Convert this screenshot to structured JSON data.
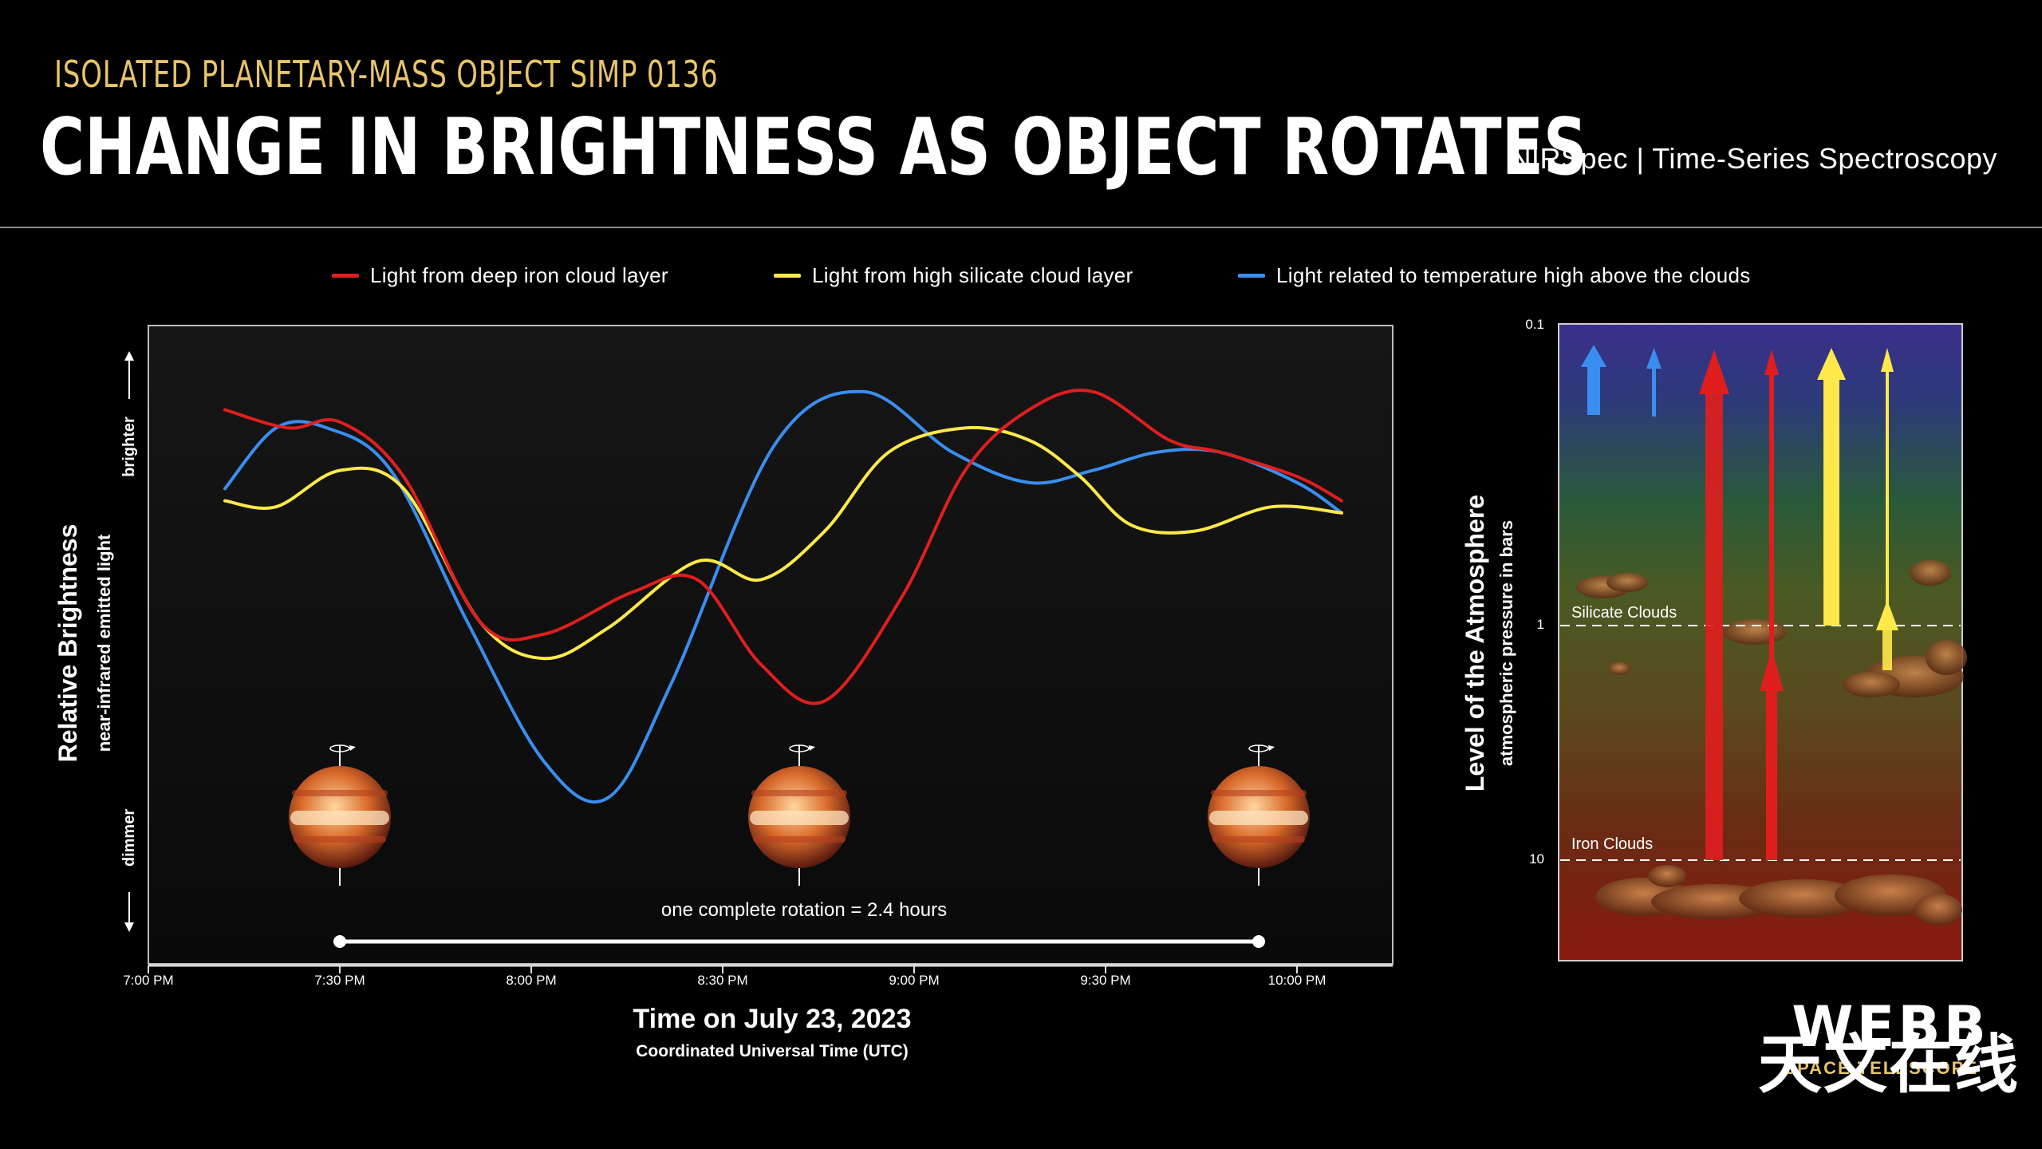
{
  "header": {
    "subtitle": "ISOLATED PLANETARY-MASS OBJECT SIMP 0136",
    "title": "CHANGE IN BRIGHTNESS AS OBJECT ROTATES",
    "instrument": "NIRSpec | Time-Series Spectroscopy"
  },
  "legend": [
    {
      "label": "Light from deep iron cloud layer",
      "color": "#e01e1e"
    },
    {
      "label": "Light from high silicate cloud layer",
      "color": "#ffe84a"
    },
    {
      "label": "Light related to temperature high above the clouds",
      "color": "#3a8ef0"
    }
  ],
  "colors": {
    "red": "#e01e1e",
    "yellow": "#ffe84a",
    "blue": "#3a8ef0"
  },
  "chart_data": [
    {
      "type": "line",
      "title": "Time on July 23, 2023",
      "subtitle": "Coordinated Universal Time (UTC)",
      "ylabel": "Relative Brightness",
      "ylabel_sub": "near-infrared emitted light",
      "y_top_label": "brighter",
      "y_bottom_label": "dimmer",
      "xlim_minutes": [
        0,
        195
      ],
      "ylim": [
        0,
        100
      ],
      "tick_labels": [
        "7:00 PM",
        "7:30 PM",
        "8:00 PM",
        "8:30 PM",
        "9:00 PM",
        "9:30 PM",
        "10:00 PM"
      ],
      "tick_minutes": [
        0,
        30,
        60,
        90,
        120,
        150,
        180
      ],
      "series": [
        {
          "name": "Light from deep iron cloud layer",
          "color": "#e01e1e",
          "x": [
            12,
            22,
            30,
            40,
            52,
            62,
            76,
            86,
            96,
            106,
            118,
            128,
            138,
            148,
            160,
            168,
            180,
            187
          ],
          "y": [
            89,
            86,
            87,
            78,
            54,
            52,
            59,
            61,
            47,
            41,
            58,
            79,
            89,
            92,
            84,
            82,
            78,
            74
          ]
        },
        {
          "name": "Light from high silicate cloud layer",
          "color": "#ffe84a",
          "x": [
            12,
            20,
            30,
            40,
            52,
            62,
            72,
            86,
            96,
            106,
            116,
            128,
            138,
            146,
            154,
            164,
            176,
            187
          ],
          "y": [
            74,
            73,
            79,
            76,
            54,
            48,
            53,
            64,
            61,
            69,
            82,
            86,
            84,
            78,
            70,
            69,
            73,
            72
          ]
        },
        {
          "name": "Light related to temperature high above the clouds",
          "color": "#3a8ef0",
          "x": [
            12,
            20,
            28,
            38,
            50,
            62,
            72,
            82,
            98,
            112,
            126,
            138,
            148,
            158,
            168,
            180,
            187
          ],
          "y": [
            76,
            86,
            86,
            79,
            54,
            31,
            25,
            44,
            83,
            92,
            82,
            77,
            79,
            82,
            82,
            77,
            72
          ]
        }
      ],
      "annotation": "one complete rotation = 2.4 hours",
      "rotation_span_minutes": [
        30,
        174
      ],
      "planet_minutes": [
        30,
        102,
        174
      ]
    },
    {
      "type": "diagram",
      "ylabel": "Level of the Atmosphere",
      "ylabel_sub": "atmospheric pressure in bars",
      "y_ticks": [
        "0.1",
        "1",
        "10"
      ],
      "layers": [
        "Silicate Clouds",
        "Iron Clouds"
      ]
    }
  ],
  "watermark": "天文在线",
  "logo_text": "WEBB",
  "logo_sub": "SPACE TELESCOPE"
}
